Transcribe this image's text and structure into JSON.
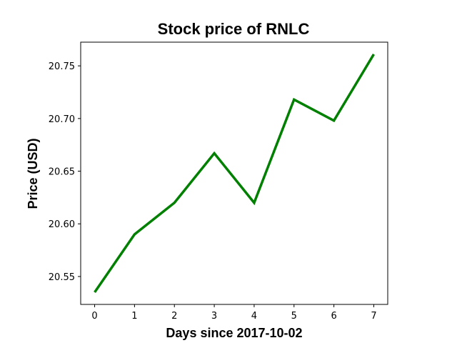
{
  "chart_data": {
    "type": "line",
    "title": "Stock price of RNLC",
    "xlabel": "Days since 2017-10-02",
    "ylabel": "Price (USD)",
    "x": [
      0,
      1,
      2,
      3,
      4,
      5,
      6,
      7
    ],
    "series": [
      {
        "values": [
          20.535,
          20.59,
          20.62,
          20.667,
          20.62,
          20.718,
          20.698,
          20.761
        ],
        "color": "#008000"
      }
    ],
    "xlim": [
      -0.35,
      7.35
    ],
    "ylim": [
      20.5235,
      20.7725
    ],
    "xticks": [
      "0",
      "1",
      "2",
      "3",
      "4",
      "5",
      "6",
      "7"
    ],
    "yticks": [
      "20.55",
      "20.60",
      "20.65",
      "20.70",
      "20.75"
    ],
    "grid": false
  }
}
